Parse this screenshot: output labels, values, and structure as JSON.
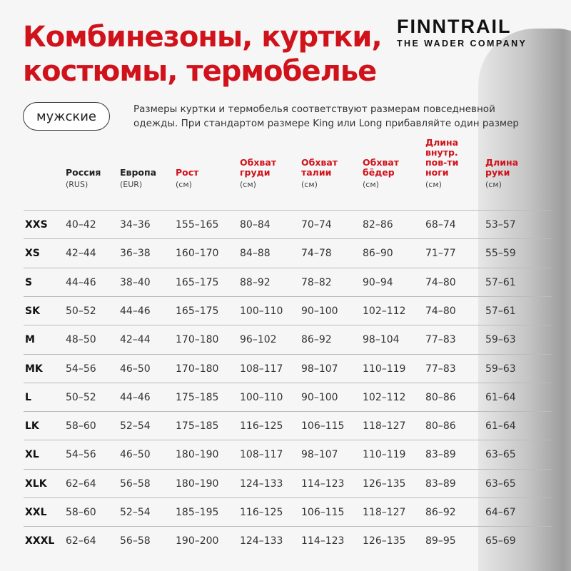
{
  "title_lines": [
    "Комбинезоны, куртки,",
    "костюмы, термобелье"
  ],
  "brand": {
    "name": "FINNTRAIL",
    "tagline": "THE WADER COMPANY"
  },
  "category_pill": "мужские",
  "note_lines": [
    "Размеры куртки и термобелья соответствуют размерам повседневной",
    "одежды. При стандартом размере King или Long прибавляйте один размер"
  ],
  "accent_color": "#d0121b",
  "columns": [
    {
      "label": "",
      "unit": ""
    },
    {
      "label": "Россия",
      "unit": "(RUS)",
      "red": false
    },
    {
      "label": "Европа",
      "unit": "(EUR)",
      "red": false
    },
    {
      "label": "Рост",
      "unit": "(см)",
      "red": true
    },
    {
      "label": "Обхват груди",
      "unit": "(см)",
      "red": true
    },
    {
      "label": "Обхват талии",
      "unit": "(см)",
      "red": true
    },
    {
      "label": "Обхват бёдер",
      "unit": "(см)",
      "red": true
    },
    {
      "label": "Длина внутр. пов-ти ноги",
      "unit": "(см)",
      "red": true
    },
    {
      "label": "Длина руки",
      "unit": "(см)",
      "red": true
    }
  ],
  "rows": [
    [
      "XXS",
      "40–42",
      "34–36",
      "155–165",
      "80–84",
      "70–74",
      "82–86",
      "68–74",
      "53–57"
    ],
    [
      "XS",
      "42–44",
      "36–38",
      "160–170",
      "84–88",
      "74–78",
      "86–90",
      "71–77",
      "55–59"
    ],
    [
      "S",
      "44–46",
      "38–40",
      "165–175",
      "88–92",
      "78–82",
      "90–94",
      "74–80",
      "57–61"
    ],
    [
      "SK",
      "50–52",
      "44–46",
      "165–175",
      "100–110",
      "90–100",
      "102–112",
      "74–80",
      "57–61"
    ],
    [
      "M",
      "48–50",
      "42–44",
      "170–180",
      "96–102",
      "86–92",
      "98–104",
      "77–83",
      "59–63"
    ],
    [
      "MK",
      "54–56",
      "46–50",
      "170–180",
      "108–117",
      "98–107",
      "110–119",
      "77–83",
      "59–63"
    ],
    [
      "L",
      "50–52",
      "44–46",
      "175–185",
      "100–110",
      "90–100",
      "102–112",
      "80–86",
      "61–64"
    ],
    [
      "LK",
      "58–60",
      "52–54",
      "175–185",
      "116–125",
      "106–115",
      "118–127",
      "80–86",
      "61–64"
    ],
    [
      "XL",
      "54–56",
      "46–50",
      "180–190",
      "108–117",
      "98–107",
      "110–119",
      "83–89",
      "63–65"
    ],
    [
      "XLK",
      "62–64",
      "56–58",
      "180–190",
      "124–133",
      "114–123",
      "126–135",
      "83–89",
      "63–65"
    ],
    [
      "XXL",
      "58–60",
      "52–54",
      "185–195",
      "116–125",
      "106–115",
      "118–127",
      "86–92",
      "64–67"
    ],
    [
      "XXXL",
      "62–64",
      "56–58",
      "190–200",
      "124–133",
      "114–123",
      "126–135",
      "89–95",
      "65–69"
    ]
  ]
}
